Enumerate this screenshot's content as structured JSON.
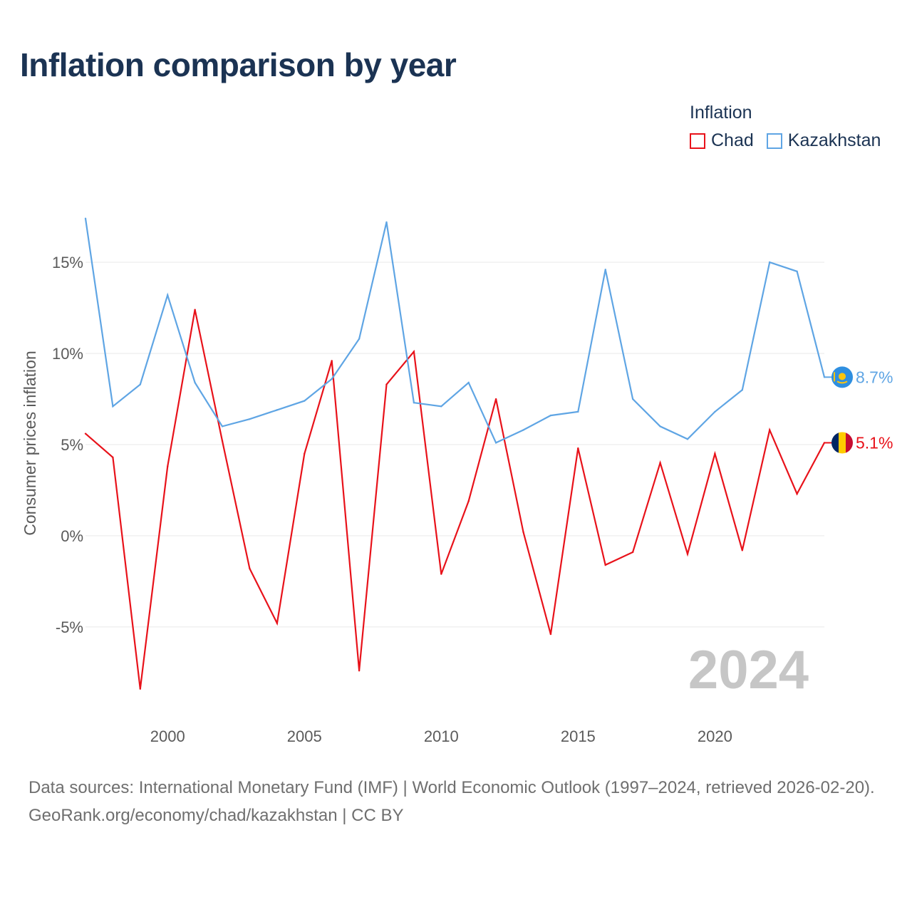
{
  "title": "Inflation comparison by year",
  "legend": {
    "title": "Inflation",
    "items": [
      {
        "label": "Chad",
        "color": "#e8121a"
      },
      {
        "label": "Kazakhstan",
        "color": "#5fa5e4"
      }
    ]
  },
  "footer": {
    "sources_prefix": "Data sources: ",
    "sources": "International Monetary Fund (IMF) | World Economic Outlook (1997–2024, retrieved 2026-02-20).",
    "credit": "GeoRank.org/economy/chad/kazakhstan | CC BY"
  },
  "chart_data": {
    "type": "line",
    "title": "Inflation comparison by year",
    "xlabel": "",
    "ylabel": "Consumer prices inflation",
    "year_watermark": "2024",
    "x": [
      1997,
      1998,
      1999,
      2000,
      2001,
      2002,
      2003,
      2004,
      2005,
      2006,
      2007,
      2008,
      2009,
      2010,
      2011,
      2012,
      2013,
      2014,
      2015,
      2016,
      2017,
      2018,
      2019,
      2020,
      2021,
      2022,
      2023,
      2024
    ],
    "xlim": [
      1997,
      2024
    ],
    "ylim": [
      -9.5,
      19.5
    ],
    "x_ticks": [
      2000,
      2005,
      2010,
      2015,
      2020
    ],
    "y_ticks": [
      -5,
      0,
      5,
      10,
      15
    ],
    "y_tick_labels": [
      "-5%",
      "0%",
      "5%",
      "10%",
      "15%"
    ],
    "grid": true,
    "legend_position": "top-right",
    "series": [
      {
        "name": "Chad",
        "color": "#e8121a",
        "end_label": "5.1%",
        "flag": "chad-flag-icon",
        "values": [
          5.6,
          4.3,
          -8.4,
          3.8,
          12.4,
          5.2,
          -1.8,
          -4.8,
          4.5,
          9.6,
          -7.4,
          8.3,
          10.1,
          -2.1,
          1.9,
          7.5,
          0.2,
          -5.4,
          4.8,
          -1.6,
          -0.9,
          4.0,
          -1.0,
          4.5,
          -0.8,
          5.8,
          2.3,
          5.1
        ]
      },
      {
        "name": "Kazakhstan",
        "color": "#5fa5e4",
        "end_label": "8.7%",
        "flag": "kazakhstan-flag-icon",
        "values": [
          17.4,
          7.1,
          8.3,
          13.2,
          8.4,
          6.0,
          6.4,
          6.9,
          7.4,
          8.6,
          10.8,
          17.2,
          7.3,
          7.1,
          8.4,
          5.1,
          5.8,
          6.6,
          6.8,
          14.6,
          7.5,
          6.0,
          5.3,
          6.8,
          8.0,
          15.0,
          14.5,
          8.7
        ]
      }
    ]
  }
}
